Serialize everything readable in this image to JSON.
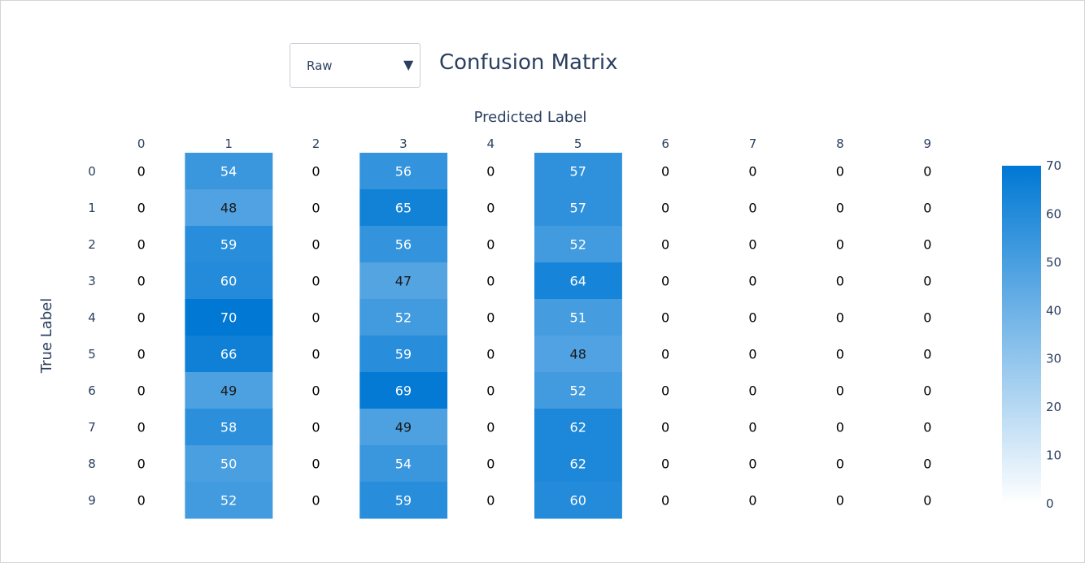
{
  "dropdown": {
    "selected": "Raw"
  },
  "chart_data": {
    "type": "heatmap",
    "title": "Confusion Matrix",
    "xlabel": "Predicted Label",
    "ylabel": "True Label",
    "x_categories": [
      "0",
      "1",
      "2",
      "3",
      "4",
      "5",
      "6",
      "7",
      "8",
      "9"
    ],
    "y_categories": [
      "0",
      "1",
      "2",
      "3",
      "4",
      "5",
      "6",
      "7",
      "8",
      "9"
    ],
    "z": [
      [
        0,
        54,
        0,
        56,
        0,
        57,
        0,
        0,
        0,
        0
      ],
      [
        0,
        48,
        0,
        65,
        0,
        57,
        0,
        0,
        0,
        0
      ],
      [
        0,
        59,
        0,
        56,
        0,
        52,
        0,
        0,
        0,
        0
      ],
      [
        0,
        60,
        0,
        47,
        0,
        64,
        0,
        0,
        0,
        0
      ],
      [
        0,
        70,
        0,
        52,
        0,
        51,
        0,
        0,
        0,
        0
      ],
      [
        0,
        66,
        0,
        59,
        0,
        48,
        0,
        0,
        0,
        0
      ],
      [
        0,
        49,
        0,
        69,
        0,
        52,
        0,
        0,
        0,
        0
      ],
      [
        0,
        58,
        0,
        49,
        0,
        62,
        0,
        0,
        0,
        0
      ],
      [
        0,
        50,
        0,
        54,
        0,
        62,
        0,
        0,
        0,
        0
      ],
      [
        0,
        52,
        0,
        59,
        0,
        60,
        0,
        0,
        0,
        0
      ]
    ],
    "zmin": 0,
    "zmax": 70,
    "colorbar": {
      "ticks": [
        "0",
        "10",
        "20",
        "30",
        "40",
        "50",
        "60",
        "70"
      ]
    },
    "colors": {
      "low": "#ffffff",
      "high": "#0078d4"
    }
  }
}
